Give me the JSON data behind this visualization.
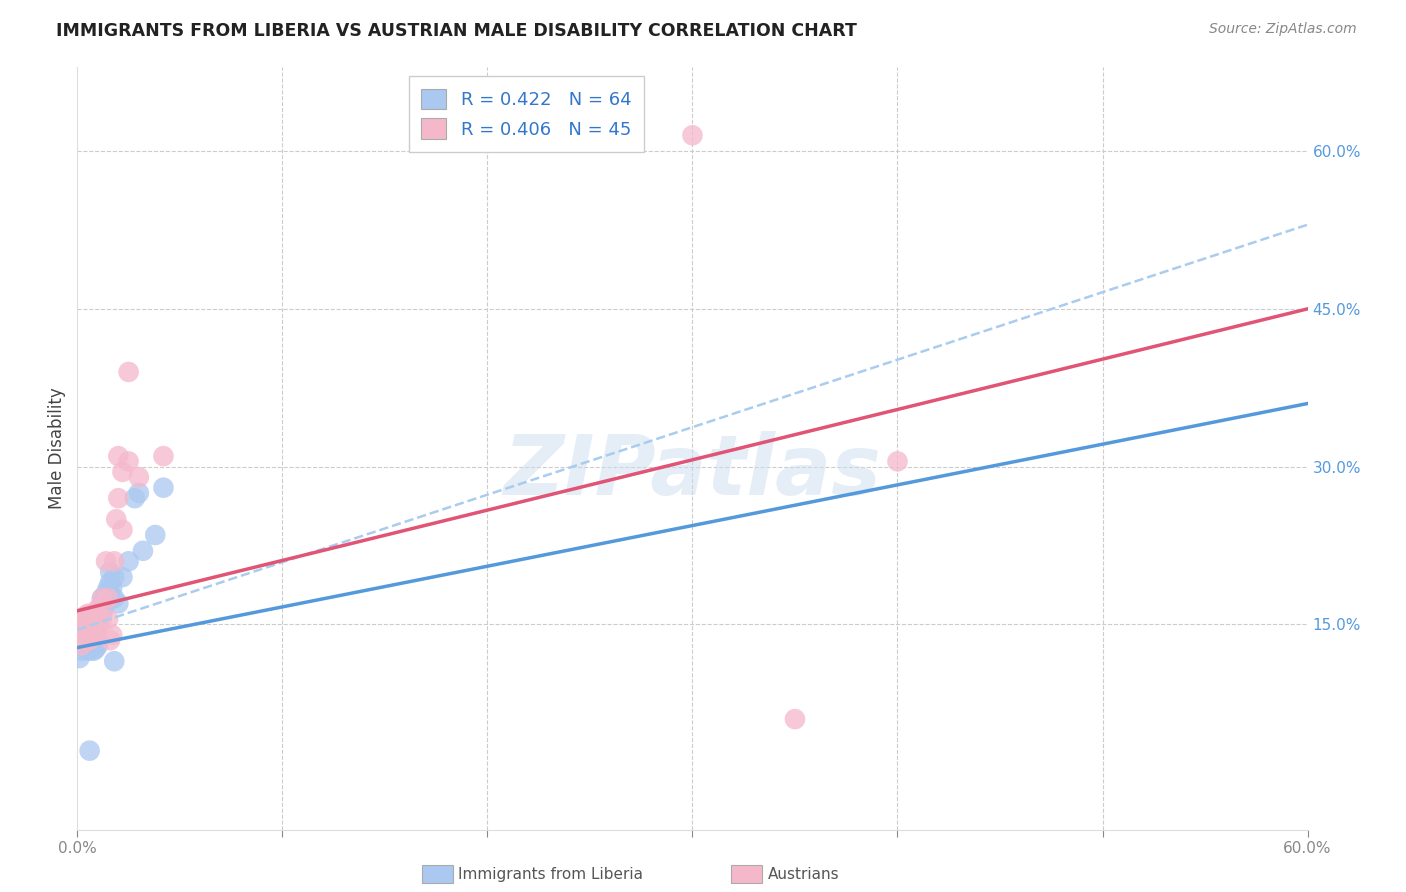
{
  "title": "IMMIGRANTS FROM LIBERIA VS AUSTRIAN MALE DISABILITY CORRELATION CHART",
  "source": "Source: ZipAtlas.com",
  "ylabel": "Male Disability",
  "xlim": [
    0.0,
    0.6
  ],
  "ylim": [
    -0.045,
    0.68
  ],
  "watermark": "ZIPatlas",
  "blue_R": 0.422,
  "blue_N": 64,
  "pink_R": 0.406,
  "pink_N": 45,
  "blue_color": "#aac8f0",
  "pink_color": "#f5b8cb",
  "blue_line_color": "#5599dd",
  "pink_line_color": "#e05575",
  "dashed_line_color": "#aaccee",
  "blue_scatter": [
    [
      0.001,
      0.118
    ],
    [
      0.002,
      0.125
    ],
    [
      0.002,
      0.13
    ],
    [
      0.003,
      0.145
    ],
    [
      0.003,
      0.148
    ],
    [
      0.003,
      0.152
    ],
    [
      0.004,
      0.138
    ],
    [
      0.004,
      0.142
    ],
    [
      0.004,
      0.148
    ],
    [
      0.004,
      0.153
    ],
    [
      0.005,
      0.128
    ],
    [
      0.005,
      0.135
    ],
    [
      0.005,
      0.138
    ],
    [
      0.005,
      0.142
    ],
    [
      0.005,
      0.148
    ],
    [
      0.005,
      0.153
    ],
    [
      0.006,
      0.125
    ],
    [
      0.006,
      0.128
    ],
    [
      0.006,
      0.132
    ],
    [
      0.006,
      0.138
    ],
    [
      0.006,
      0.143
    ],
    [
      0.006,
      0.148
    ],
    [
      0.007,
      0.128
    ],
    [
      0.007,
      0.133
    ],
    [
      0.007,
      0.14
    ],
    [
      0.007,
      0.145
    ],
    [
      0.007,
      0.15
    ],
    [
      0.007,
      0.155
    ],
    [
      0.008,
      0.125
    ],
    [
      0.008,
      0.13
    ],
    [
      0.008,
      0.135
    ],
    [
      0.008,
      0.14
    ],
    [
      0.008,
      0.145
    ],
    [
      0.009,
      0.127
    ],
    [
      0.009,
      0.132
    ],
    [
      0.009,
      0.138
    ],
    [
      0.009,
      0.143
    ],
    [
      0.01,
      0.13
    ],
    [
      0.01,
      0.135
    ],
    [
      0.01,
      0.15
    ],
    [
      0.012,
      0.16
    ],
    [
      0.012,
      0.17
    ],
    [
      0.012,
      0.175
    ],
    [
      0.013,
      0.165
    ],
    [
      0.013,
      0.172
    ],
    [
      0.014,
      0.18
    ],
    [
      0.015,
      0.175
    ],
    [
      0.015,
      0.185
    ],
    [
      0.016,
      0.18
    ],
    [
      0.016,
      0.19
    ],
    [
      0.016,
      0.2
    ],
    [
      0.017,
      0.185
    ],
    [
      0.018,
      0.175
    ],
    [
      0.018,
      0.195
    ],
    [
      0.02,
      0.17
    ],
    [
      0.022,
      0.195
    ],
    [
      0.025,
      0.21
    ],
    [
      0.028,
      0.27
    ],
    [
      0.03,
      0.275
    ],
    [
      0.032,
      0.22
    ],
    [
      0.038,
      0.235
    ],
    [
      0.042,
      0.28
    ],
    [
      0.006,
      0.03
    ],
    [
      0.018,
      0.115
    ]
  ],
  "pink_scatter": [
    [
      0.001,
      0.135
    ],
    [
      0.001,
      0.145
    ],
    [
      0.002,
      0.13
    ],
    [
      0.002,
      0.14
    ],
    [
      0.002,
      0.15
    ],
    [
      0.003,
      0.14
    ],
    [
      0.003,
      0.145
    ],
    [
      0.003,
      0.155
    ],
    [
      0.004,
      0.135
    ],
    [
      0.004,
      0.15
    ],
    [
      0.004,
      0.158
    ],
    [
      0.005,
      0.14
    ],
    [
      0.005,
      0.148
    ],
    [
      0.005,
      0.155
    ],
    [
      0.005,
      0.16
    ],
    [
      0.006,
      0.135
    ],
    [
      0.006,
      0.145
    ],
    [
      0.006,
      0.155
    ],
    [
      0.007,
      0.145
    ],
    [
      0.007,
      0.16
    ],
    [
      0.008,
      0.14
    ],
    [
      0.008,
      0.155
    ],
    [
      0.009,
      0.16
    ],
    [
      0.01,
      0.145
    ],
    [
      0.01,
      0.165
    ],
    [
      0.012,
      0.155
    ],
    [
      0.012,
      0.175
    ],
    [
      0.014,
      0.21
    ],
    [
      0.015,
      0.155
    ],
    [
      0.015,
      0.175
    ],
    [
      0.018,
      0.21
    ],
    [
      0.019,
      0.25
    ],
    [
      0.02,
      0.27
    ],
    [
      0.02,
      0.31
    ],
    [
      0.022,
      0.24
    ],
    [
      0.022,
      0.295
    ],
    [
      0.025,
      0.305
    ],
    [
      0.025,
      0.39
    ],
    [
      0.03,
      0.29
    ],
    [
      0.042,
      0.31
    ],
    [
      0.3,
      0.615
    ],
    [
      0.35,
      0.06
    ],
    [
      0.4,
      0.305
    ],
    [
      0.017,
      0.14
    ],
    [
      0.016,
      0.135
    ]
  ],
  "blue_line_x": [
    0.0,
    0.6
  ],
  "blue_line_y": [
    0.128,
    0.36
  ],
  "pink_line_x": [
    0.0,
    0.6
  ],
  "pink_line_y": [
    0.163,
    0.45
  ],
  "dashed_line_x": [
    0.0,
    0.6
  ],
  "dashed_line_y": [
    0.145,
    0.53
  ]
}
